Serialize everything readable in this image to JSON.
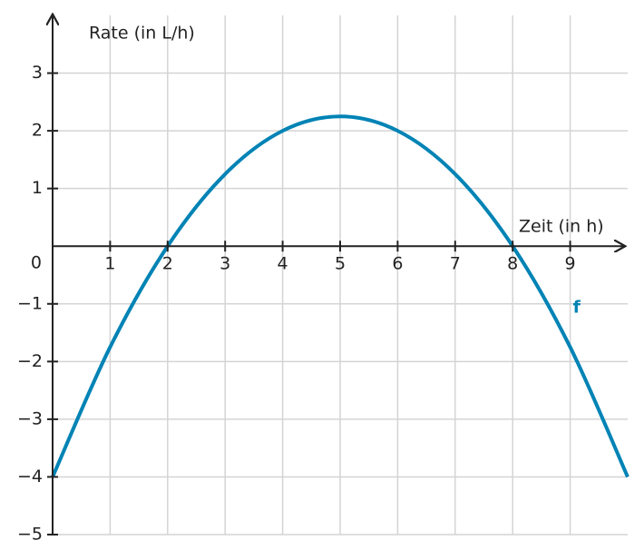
{
  "chart_data": {
    "type": "line",
    "y_label": "Rate (in L/h)",
    "x_label": "Zeit (in h)",
    "x": [
      0,
      1,
      2,
      3,
      4,
      5,
      6,
      7,
      8,
      9,
      10
    ],
    "series": [
      {
        "name": "f",
        "color": "#0083b5",
        "values": [
          -4,
          -1.75,
          0,
          1.25,
          2,
          2.25,
          2,
          1.25,
          0,
          -1.75,
          -4
        ]
      }
    ],
    "xlim": [
      0,
      10
    ],
    "ylim": [
      -5,
      4
    ],
    "xticks": [
      1,
      2,
      3,
      4,
      5,
      6,
      7,
      8,
      9
    ],
    "yticks": [
      3,
      2,
      1,
      0,
      {
        "value": -1,
        "label": "−1"
      },
      {
        "value": -2,
        "label": "−2"
      },
      {
        "value": -3,
        "label": "−3"
      },
      {
        "value": -4,
        "label": "−4"
      },
      {
        "value": -5,
        "label": "−5"
      }
    ],
    "grid": true
  }
}
